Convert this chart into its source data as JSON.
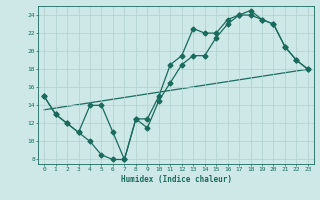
{
  "xlabel": "Humidex (Indice chaleur)",
  "bg_color": "#cde8e6",
  "grid_color": "#afd0ce",
  "line_color": "#1a6b5e",
  "xlim": [
    -0.5,
    23.5
  ],
  "ylim": [
    7.5,
    25.0
  ],
  "xticks": [
    0,
    1,
    2,
    3,
    4,
    5,
    6,
    7,
    8,
    9,
    10,
    11,
    12,
    13,
    14,
    15,
    16,
    17,
    18,
    19,
    20,
    21,
    22,
    23
  ],
  "yticks": [
    8,
    10,
    12,
    14,
    16,
    18,
    20,
    22,
    24
  ],
  "line1_x": [
    0,
    1,
    2,
    3,
    4,
    5,
    6,
    7,
    8,
    9,
    10,
    11,
    12,
    13,
    14,
    15,
    16,
    17,
    18,
    19,
    20,
    21,
    22,
    23
  ],
  "line1_y": [
    15.0,
    13.0,
    12.0,
    11.0,
    10.0,
    8.5,
    8.0,
    8.0,
    12.5,
    11.5,
    14.5,
    16.5,
    18.5,
    19.5,
    19.5,
    21.5,
    23.0,
    24.0,
    24.0,
    23.5,
    23.0,
    20.5,
    19.0,
    18.0
  ],
  "line2_x": [
    0,
    1,
    2,
    3,
    4,
    5,
    6,
    7,
    8,
    9,
    10,
    11,
    12,
    13,
    14,
    15,
    16,
    17,
    18,
    19,
    20,
    21,
    22,
    23
  ],
  "line2_y": [
    15.0,
    13.0,
    12.0,
    11.0,
    14.0,
    14.0,
    11.0,
    8.0,
    12.5,
    12.5,
    15.0,
    18.5,
    19.5,
    22.5,
    22.0,
    22.0,
    23.5,
    24.0,
    24.5,
    23.5,
    23.0,
    20.5,
    19.0,
    18.0
  ],
  "line3_x": [
    0,
    23
  ],
  "line3_y": [
    13.5,
    18.0
  ],
  "markersize": 2.5,
  "linewidth": 0.9
}
